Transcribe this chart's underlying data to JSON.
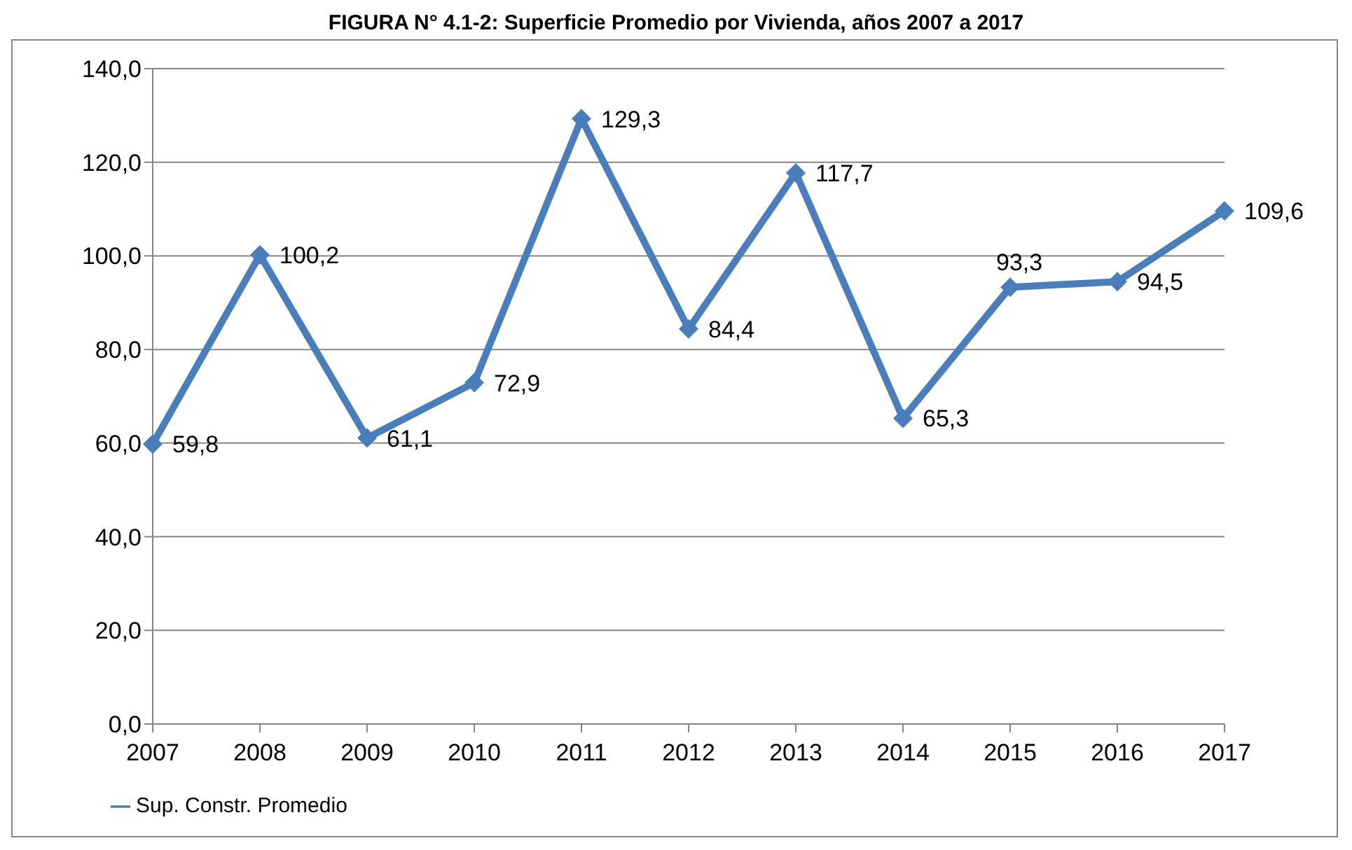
{
  "chart_data": {
    "type": "line",
    "title": "FIGURA N° 4.1-2: Superficie Promedio por Vivienda, años 2007 a 2017",
    "categories": [
      "2007",
      "2008",
      "2009",
      "2010",
      "2011",
      "2012",
      "2013",
      "2014",
      "2015",
      "2016",
      "2017"
    ],
    "series": [
      {
        "name": "Sup. Constr. Promedio",
        "color": "#4a7ebb",
        "values": [
          59.8,
          100.2,
          61.1,
          72.9,
          129.3,
          84.4,
          117.7,
          65.3,
          93.3,
          94.5,
          109.6
        ],
        "value_labels": [
          "59,8",
          "100,2",
          "61,1",
          "72,9",
          "129,3",
          "84,4",
          "117,7",
          "65,3",
          "93,3",
          "94,5",
          "109,6"
        ]
      }
    ],
    "ylim": [
      0,
      140
    ],
    "yticks": [
      {
        "value": 0,
        "label": "0,0"
      },
      {
        "value": 20,
        "label": "20,0"
      },
      {
        "value": 40,
        "label": "40,0"
      },
      {
        "value": 60,
        "label": "60,0"
      },
      {
        "value": 80,
        "label": "80,0"
      },
      {
        "value": 100,
        "label": "100,0"
      },
      {
        "value": 120,
        "label": "120,0"
      },
      {
        "value": 140,
        "label": "140,0"
      }
    ],
    "grid": "y",
    "legend": "bottom left",
    "marker": "diamond",
    "line_style": "solid"
  }
}
